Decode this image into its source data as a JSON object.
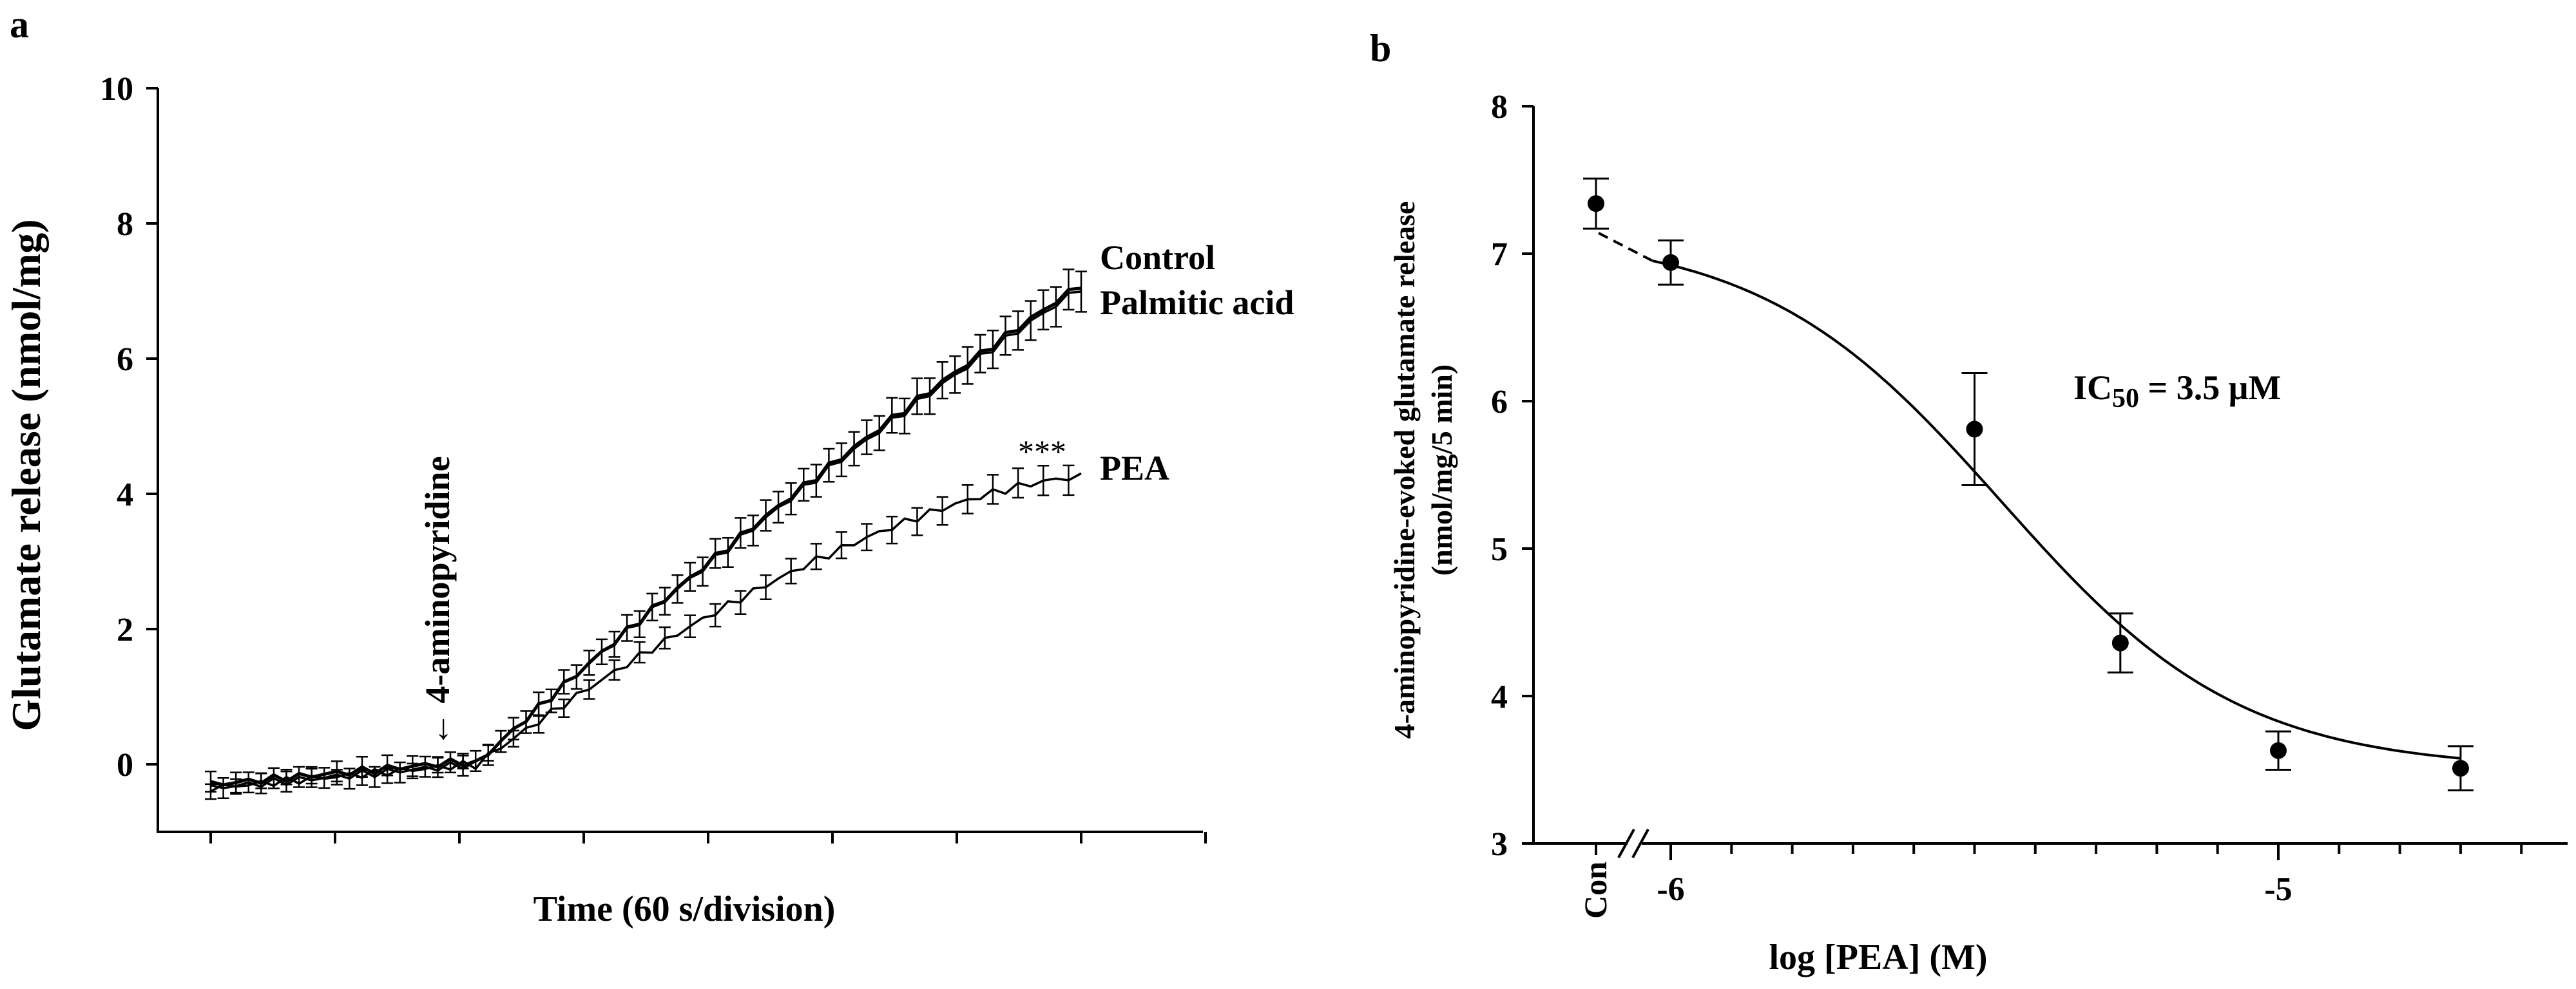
{
  "figure": {
    "panel_a_label": "a",
    "panel_b_label": "b"
  },
  "chart_data": [
    {
      "panel": "a",
      "type": "line",
      "title": "",
      "xlabel": "Time (60 s/division)",
      "ylabel": "Glutamate release (nmol/mg)",
      "ylim": [
        -1,
        10
      ],
      "yticks": [
        0,
        2,
        4,
        6,
        8,
        10
      ],
      "xlim": [
        -0.4,
        8.0
      ],
      "x_divisions": 8,
      "grid": false,
      "annotation_arrow": "← 4-aminopyridine",
      "arrow_at_division": 2,
      "series": [
        {
          "name": "Control",
          "x_start": 0,
          "x_end": 7.0,
          "n": 70,
          "baseline": -0.3,
          "final": 7.1,
          "errorbar": 0.3,
          "shape": "linear"
        },
        {
          "name": "Palmitic acid",
          "x_start": 0,
          "x_end": 7.0,
          "n": 70,
          "baseline": -0.35,
          "final": 7.05,
          "errorbar": 0.3,
          "shape": "linear"
        },
        {
          "name": "PEA",
          "x_start": 0,
          "x_end": 7.0,
          "n": 70,
          "baseline": -0.35,
          "final": 4.25,
          "errorbar": 0.22,
          "shape": "concave"
        }
      ],
      "significance_label": "***",
      "significance_series": "PEA"
    },
    {
      "panel": "b",
      "type": "scatter",
      "title": "",
      "xlabel": "log [PEA] (M)",
      "ylabel_line1": "4-aminopyridine-evoked glutamate release",
      "ylabel_line2": "(nmol/mg/5 min)",
      "ylim": [
        3,
        8
      ],
      "yticks": [
        3,
        4,
        5,
        6,
        7,
        8
      ],
      "xlim": [
        -6.15,
        -4.5
      ],
      "xticks": [
        -6,
        -5
      ],
      "xtick_labels": [
        "-6",
        "-5"
      ],
      "control_label": "Con",
      "control_value": 7.34,
      "control_error": 0.17,
      "points": [
        {
          "x": -6.0,
          "y": 6.94,
          "err": 0.15
        },
        {
          "x": -5.5,
          "y": 5.81,
          "err": 0.38
        },
        {
          "x": -5.26,
          "y": 4.36,
          "err": 0.2
        },
        {
          "x": -5.0,
          "y": 3.63,
          "err": 0.13
        },
        {
          "x": -4.7,
          "y": 3.51,
          "err": 0.15
        }
      ],
      "fit": {
        "top": 7.14,
        "bottom": 3.5,
        "log_ic50": -5.456,
        "hill": 2.2
      },
      "fit_start_log": -6.03,
      "annotation_main": "IC",
      "annotation_sub": "50",
      "annotation_rest": " = 3.5 μM"
    }
  ]
}
